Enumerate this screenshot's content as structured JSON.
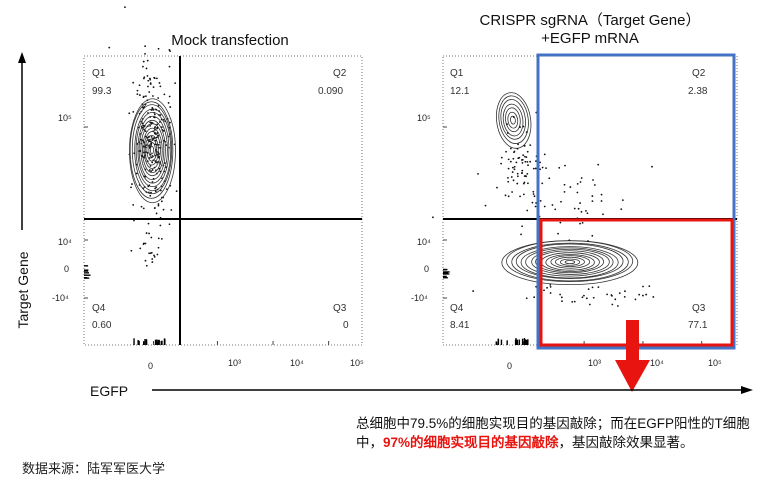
{
  "chart_data": [
    {
      "type": "scatter",
      "title": "Mock transfection",
      "xlabel": "EGFP",
      "ylabel": "Target Gene",
      "x_scale": "biexponential",
      "y_scale": "biexponential",
      "x_ticks": [
        "0",
        "10³",
        "10⁴",
        "10⁵"
      ],
      "y_ticks": [
        "10⁵",
        "10⁴",
        "0",
        "-10⁴"
      ],
      "quadrants": [
        {
          "name": "Q1",
          "percent": "99.3"
        },
        {
          "name": "Q2",
          "percent": "0.090"
        },
        {
          "name": "Q3",
          "percent": "0"
        },
        {
          "name": "Q4",
          "percent": "0.60"
        }
      ]
    },
    {
      "type": "scatter",
      "title_line1": "CRISPR sgRNA（Target Gene）",
      "title_line2": "+EGFP mRNA",
      "xlabel": "EGFP",
      "ylabel": "Target Gene",
      "x_scale": "biexponential",
      "y_scale": "biexponential",
      "x_ticks": [
        "0",
        "10³",
        "10⁴",
        "10⁵"
      ],
      "y_ticks": [
        "10⁵",
        "10⁴",
        "0",
        "-10⁴"
      ],
      "quadrants": [
        {
          "name": "Q1",
          "percent": "12.1"
        },
        {
          "name": "Q2",
          "percent": "2.38"
        },
        {
          "name": "Q3",
          "percent": "77.1"
        },
        {
          "name": "Q4",
          "percent": "8.41"
        }
      ],
      "highlight": {
        "blue_box": "EGFP+ (Q2+Q3)",
        "red_box": "Q3"
      }
    }
  ],
  "colors": {
    "blue_box": "#4472c4",
    "red_box": "#e8140f",
    "arrow": "#e8140f"
  },
  "note": {
    "part1": "总细胞中79.5%的细胞实现目的基因敲除；而在EGFP阳性的T细胞中，",
    "highlight": "97%的细胞实现目的基因敲除",
    "part2": "，基因敲除效果显著。"
  },
  "source": "数据来源：陆军军医大学"
}
